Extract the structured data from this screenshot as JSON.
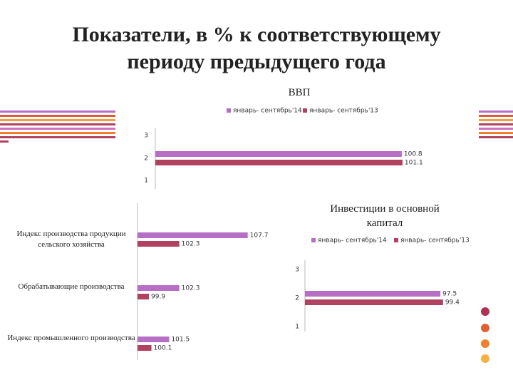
{
  "title": "Показатели, в % к соответствующему периоду предыдущего года",
  "chart_data": [
    {
      "type": "bar",
      "title": "ВВП",
      "categories": [
        "3",
        "2",
        "1"
      ],
      "xlim": [
        0,
        102
      ],
      "series": [
        {
          "name": "январь- сентябрь'14",
          "color": "#b76ec5",
          "values": [
            null,
            100.8,
            null
          ]
        },
        {
          "name": "январь- сентябрь'13",
          "color": "#b0425f",
          "values": [
            null,
            101.1,
            null
          ]
        }
      ]
    },
    {
      "type": "bar",
      "categories": [
        "Индекс производства продукции сельского хозяйства",
        "Обрабатывающие производства",
        "Индекс промышленного производства"
      ],
      "xlim": [
        99,
        108
      ],
      "series": [
        {
          "color": "#b76ec5",
          "values": [
            107.7,
            102.3,
            101.5
          ]
        },
        {
          "color": "#b0425f",
          "values": [
            102.3,
            99.9,
            100.1
          ]
        }
      ]
    },
    {
      "type": "bar",
      "title": "Инвестиции в основной капитал",
      "categories": [
        "3",
        "2",
        "1"
      ],
      "xlim": [
        0,
        100
      ],
      "series": [
        {
          "name": "январь- сентябрь'14",
          "color": "#b76ec5",
          "values": [
            null,
            97.5,
            null
          ]
        },
        {
          "name": "январь- сентябрь'13",
          "color": "#b0425f",
          "values": [
            null,
            99.4,
            null
          ]
        }
      ]
    }
  ]
}
